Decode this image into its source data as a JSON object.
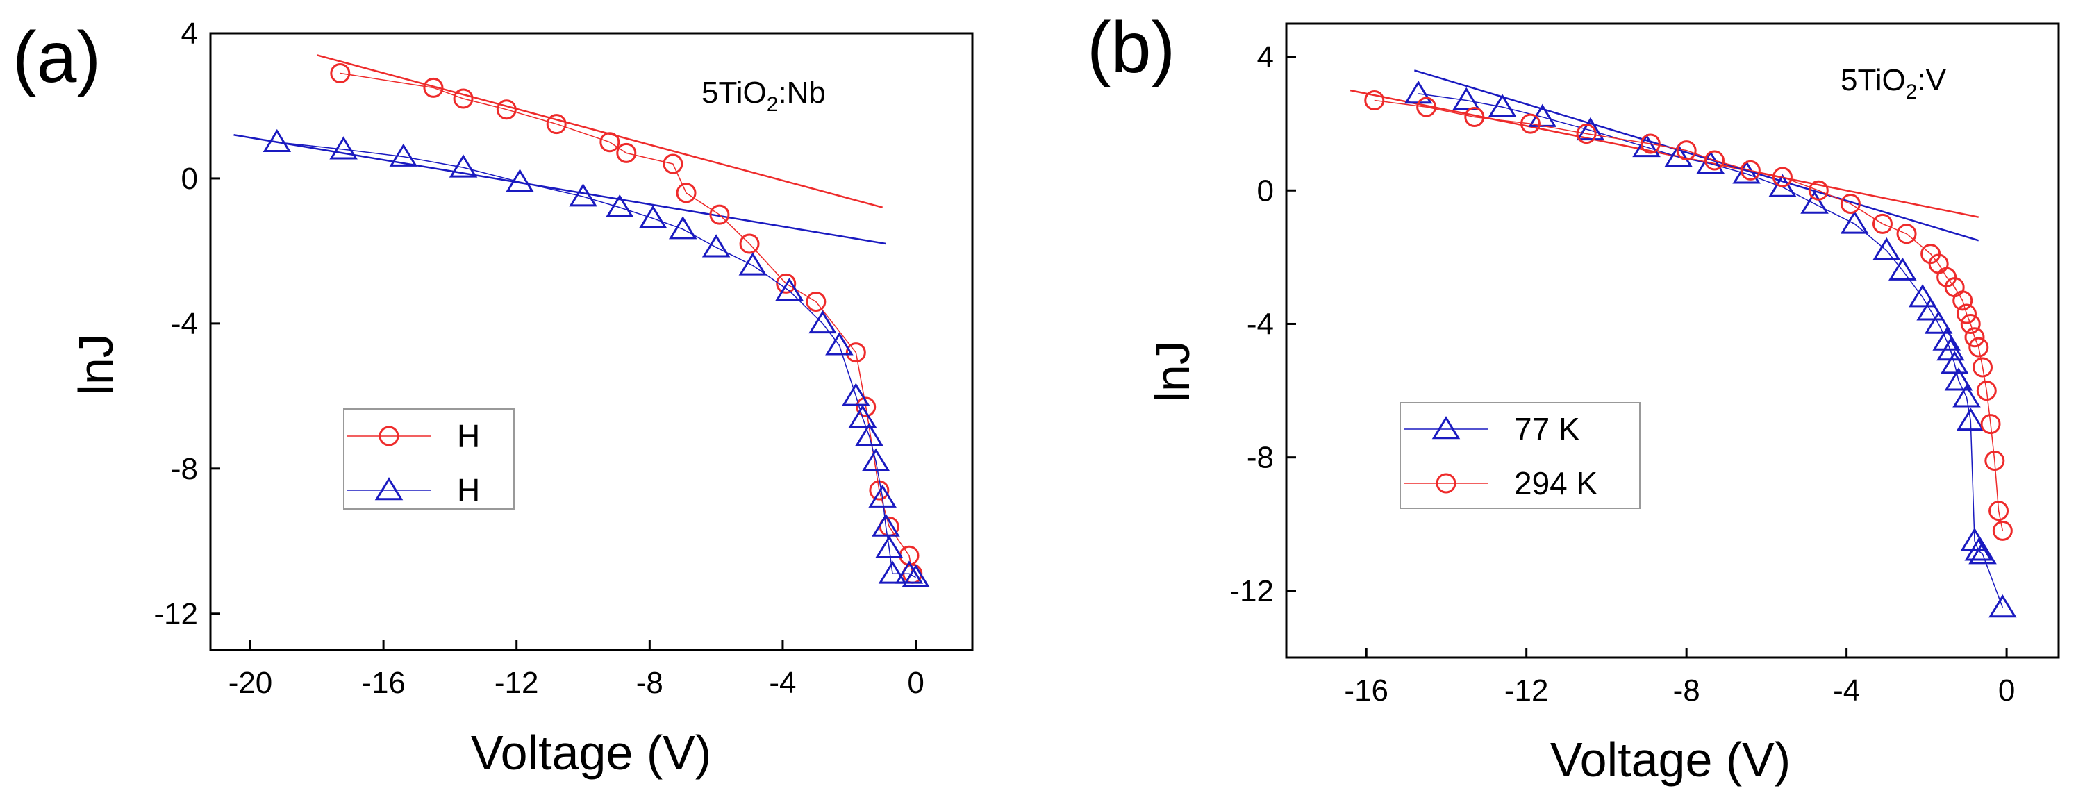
{
  "colors": {
    "red": "#ee2b2b",
    "blue": "#1a1ac0",
    "axis": "#000000"
  },
  "chart_data": [
    {
      "panel_label": "(a)",
      "type": "line",
      "title": "",
      "annotation": {
        "base": "5TiO",
        "sub": "2",
        "suffix": ":Nb"
      },
      "xlabel": "Voltage (V)",
      "ylabel": "lnJ",
      "xlim": [
        -21.2,
        1.7
      ],
      "ylim": [
        -13,
        4
      ],
      "xticks": [
        -20,
        -16,
        -12,
        -8,
        -4,
        0
      ],
      "yticks": [
        4,
        0,
        -4,
        -8,
        -12
      ],
      "grid": false,
      "legend": {
        "position": "lower-left",
        "entries": [
          "H",
          "H"
        ]
      },
      "series": [
        {
          "name": "H",
          "legend_label": "H",
          "color_key": "red",
          "marker": "circle",
          "x": [
            -17.3,
            -14.5,
            -13.6,
            -12.3,
            -10.8,
            -9.2,
            -8.7,
            -7.3,
            -6.9,
            -5.9,
            -5.0,
            -3.9,
            -3.0,
            -1.8,
            -1.5,
            -1.1,
            -0.8,
            -0.2,
            -0.1
          ],
          "y": [
            2.9,
            2.5,
            2.2,
            1.9,
            1.5,
            1.0,
            0.7,
            0.4,
            -0.4,
            -1.0,
            -1.8,
            -2.9,
            -3.4,
            -4.8,
            -6.3,
            -8.6,
            -9.6,
            -10.4,
            -10.9
          ]
        },
        {
          "name": "H",
          "legend_label": "H",
          "color_key": "blue",
          "marker": "triangle",
          "x": [
            -19.2,
            -17.2,
            -15.4,
            -13.6,
            -11.9,
            -10.0,
            -8.9,
            -7.9,
            -7.0,
            -6.0,
            -4.9,
            -3.8,
            -2.8,
            -2.3,
            -1.8,
            -1.6,
            -1.4,
            -1.2,
            -1.0,
            -0.9,
            -0.8,
            -0.7,
            -0.2,
            0.0
          ],
          "y": [
            1.0,
            0.8,
            0.6,
            0.3,
            -0.1,
            -0.5,
            -0.8,
            -1.1,
            -1.4,
            -1.9,
            -2.4,
            -3.1,
            -4.0,
            -4.6,
            -6.0,
            -6.6,
            -7.1,
            -7.8,
            -8.8,
            -9.6,
            -10.2,
            -10.9,
            -10.9,
            -11.0
          ]
        }
      ],
      "fit_lines": [
        {
          "color_key": "red",
          "x": [
            -18.0,
            -1.0
          ],
          "y": [
            3.4,
            -0.8
          ]
        },
        {
          "color_key": "blue",
          "x": [
            -20.5,
            -0.9
          ],
          "y": [
            1.2,
            -1.8
          ]
        }
      ]
    },
    {
      "panel_label": "(b)",
      "type": "line",
      "title": "",
      "annotation": {
        "base": "5TiO",
        "sub": "2",
        "suffix": ":V"
      },
      "xlabel": "Voltage (V)",
      "ylabel": "lnJ",
      "xlim": [
        -18,
        1.3
      ],
      "ylim": [
        -14,
        5
      ],
      "xticks": [
        -16,
        -12,
        -8,
        -4,
        0
      ],
      "yticks": [
        4,
        0,
        -4,
        -8,
        -12
      ],
      "grid": false,
      "legend": {
        "position": "lower-left",
        "entries": [
          "77 K",
          "294 K"
        ]
      },
      "series": [
        {
          "name": "77 K",
          "legend_label": "77 K",
          "color_key": "blue",
          "marker": "triangle",
          "x": [
            -14.7,
            -13.5,
            -12.6,
            -11.6,
            -10.4,
            -9.0,
            -8.2,
            -7.4,
            -6.5,
            -5.6,
            -4.8,
            -3.8,
            -3.0,
            -2.6,
            -2.1,
            -1.9,
            -1.7,
            -1.5,
            -1.4,
            -1.3,
            -1.2,
            -1.0,
            -0.9,
            -0.8,
            -0.7,
            -0.6,
            -0.1
          ],
          "y": [
            2.9,
            2.7,
            2.5,
            2.2,
            1.8,
            1.3,
            1.0,
            0.8,
            0.5,
            0.1,
            -0.4,
            -1.0,
            -1.8,
            -2.4,
            -3.2,
            -3.6,
            -4.0,
            -4.5,
            -4.8,
            -5.2,
            -5.7,
            -6.2,
            -6.9,
            -10.5,
            -10.8,
            -10.9,
            -12.5
          ],
          "x_display_fix": [
            -14.7,
            -13.5,
            -12.6,
            -11.6,
            -10.4,
            -9.0,
            -8.2,
            -7.4,
            -6.5,
            -5.6,
            -4.8,
            -3.8,
            -3.0,
            -2.6,
            -2.1,
            -1.9,
            -1.7,
            -1.5,
            -1.4,
            -1.3,
            -1.2,
            -1.0,
            -0.9,
            -0.8,
            -0.7,
            -0.6,
            -0.1
          ]
        },
        {
          "name": "294 K",
          "legend_label": "294 K",
          "color_key": "red",
          "marker": "circle",
          "x": [
            -15.8,
            -14.5,
            -13.3,
            -11.9,
            -10.5,
            -8.9,
            -8.0,
            -7.3,
            -6.4,
            -5.6,
            -4.7,
            -3.9,
            -3.1,
            -2.5,
            -1.9,
            -1.7,
            -1.5,
            -1.3,
            -1.1,
            -1.0,
            -0.9,
            -0.8,
            -0.7,
            -0.6,
            -0.5,
            -0.4,
            -0.3,
            -0.2,
            -0.1
          ],
          "y": [
            2.7,
            2.5,
            2.2,
            2.0,
            1.7,
            1.4,
            1.2,
            0.9,
            0.6,
            0.4,
            0.0,
            -0.4,
            -1.0,
            -1.3,
            -1.9,
            -2.2,
            -2.6,
            -2.9,
            -3.3,
            -3.7,
            -4.0,
            -4.4,
            -4.7,
            -5.3,
            -6.0,
            -7.0,
            -8.1,
            -9.6,
            -10.2
          ]
        }
      ],
      "fit_lines": [
        {
          "color_key": "red",
          "x": [
            -16.4,
            -0.7
          ],
          "y": [
            3.0,
            -0.8
          ]
        },
        {
          "color_key": "blue",
          "x": [
            -14.8,
            -0.7
          ],
          "y": [
            3.6,
            -1.5
          ]
        }
      ]
    }
  ]
}
